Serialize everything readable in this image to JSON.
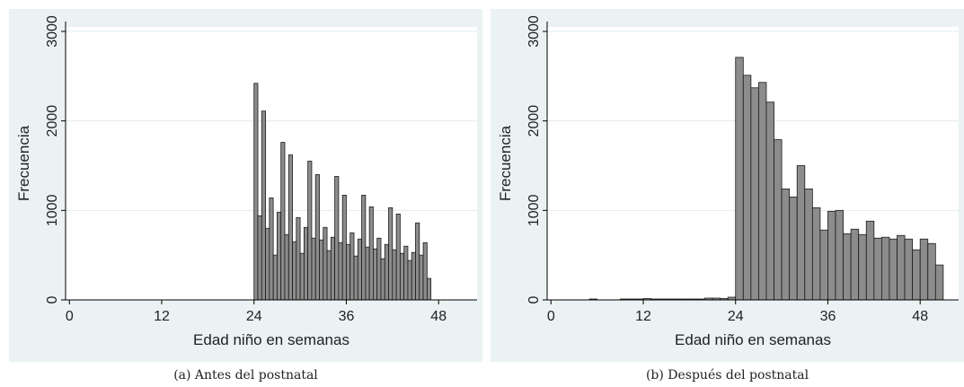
{
  "chart_data": [
    {
      "type": "bar",
      "panel_caption": "(a) Antes del postnatal",
      "xlabel": "Edad niño en semanas",
      "ylabel": "Frecuencia",
      "xticks": [
        0,
        12,
        24,
        36,
        48
      ],
      "yticks": [
        0,
        1000,
        2000,
        3000
      ],
      "xlim": [
        -0.5,
        53
      ],
      "ylim": [
        0,
        3050
      ],
      "bin_width": 0.5,
      "bin_start": 24,
      "values": [
        2420,
        940,
        2110,
        800,
        1140,
        500,
        980,
        1760,
        730,
        1620,
        650,
        920,
        520,
        810,
        1550,
        690,
        1400,
        670,
        810,
        550,
        700,
        1380,
        640,
        1170,
        620,
        750,
        490,
        680,
        1170,
        590,
        1040,
        570,
        690,
        460,
        620,
        1030,
        560,
        960,
        520,
        600,
        440,
        530,
        860,
        500,
        640,
        240
      ],
      "grid": true,
      "bar_color": "#8c8c8c"
    },
    {
      "type": "bar",
      "panel_caption": "(b) Después del postnatal",
      "xlabel": "Edad niño en semanas",
      "ylabel": "Frecuencia",
      "xticks": [
        0,
        12,
        24,
        36,
        48
      ],
      "yticks": [
        0,
        1000,
        2000,
        3000
      ],
      "xlim": [
        -0.5,
        53
      ],
      "ylim": [
        0,
        3050
      ],
      "bin_width": 1,
      "bin_start": 0,
      "values": [
        0,
        0,
        0,
        0,
        0,
        10,
        0,
        0,
        0,
        10,
        10,
        10,
        15,
        10,
        10,
        10,
        10,
        10,
        10,
        10,
        20,
        20,
        15,
        30,
        2710,
        2510,
        2370,
        2430,
        2210,
        1790,
        1240,
        1150,
        1500,
        1240,
        1030,
        780,
        990,
        1000,
        740,
        790,
        730,
        880,
        690,
        700,
        680,
        720,
        680,
        560,
        680,
        630,
        390
      ],
      "grid": true,
      "bar_color": "#8c8c8c"
    }
  ]
}
